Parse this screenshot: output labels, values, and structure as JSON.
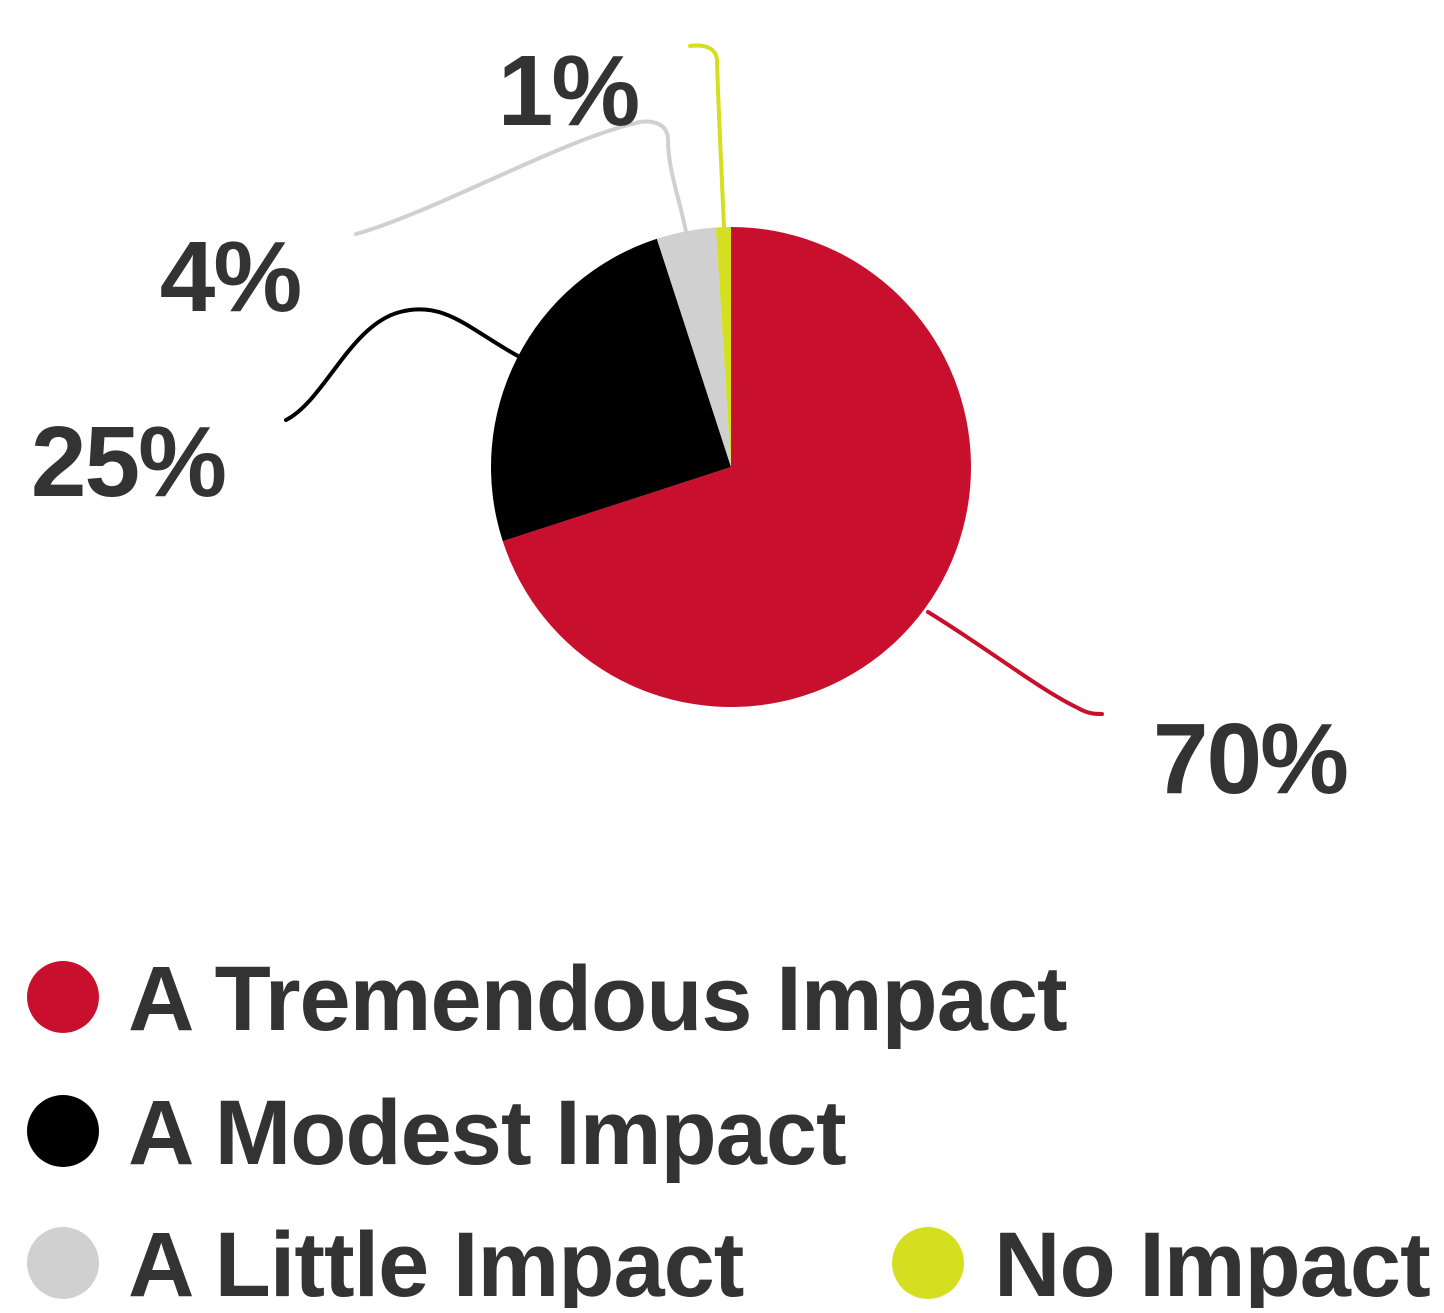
{
  "chart_data": {
    "type": "pie",
    "title": "",
    "categories": [
      "A Tremendous Impact",
      "A Modest Impact",
      "A Little Impact",
      "No Impact"
    ],
    "values": [
      70,
      25,
      4,
      1
    ],
    "value_labels": [
      "70%",
      "25%",
      "4%",
      "1%"
    ],
    "unit": "%",
    "colors": [
      "#c8102e",
      "#000000",
      "#d0d0d0",
      "#d4df1f"
    ],
    "start_angle_deg": 0,
    "direction": "clockwise",
    "legend_position": "bottom",
    "legend_layout": "rows: [Tremendous], [Modest], [Little, No Impact]",
    "label_style": "outside labels with curved leader lines",
    "text_color": "#333333"
  }
}
